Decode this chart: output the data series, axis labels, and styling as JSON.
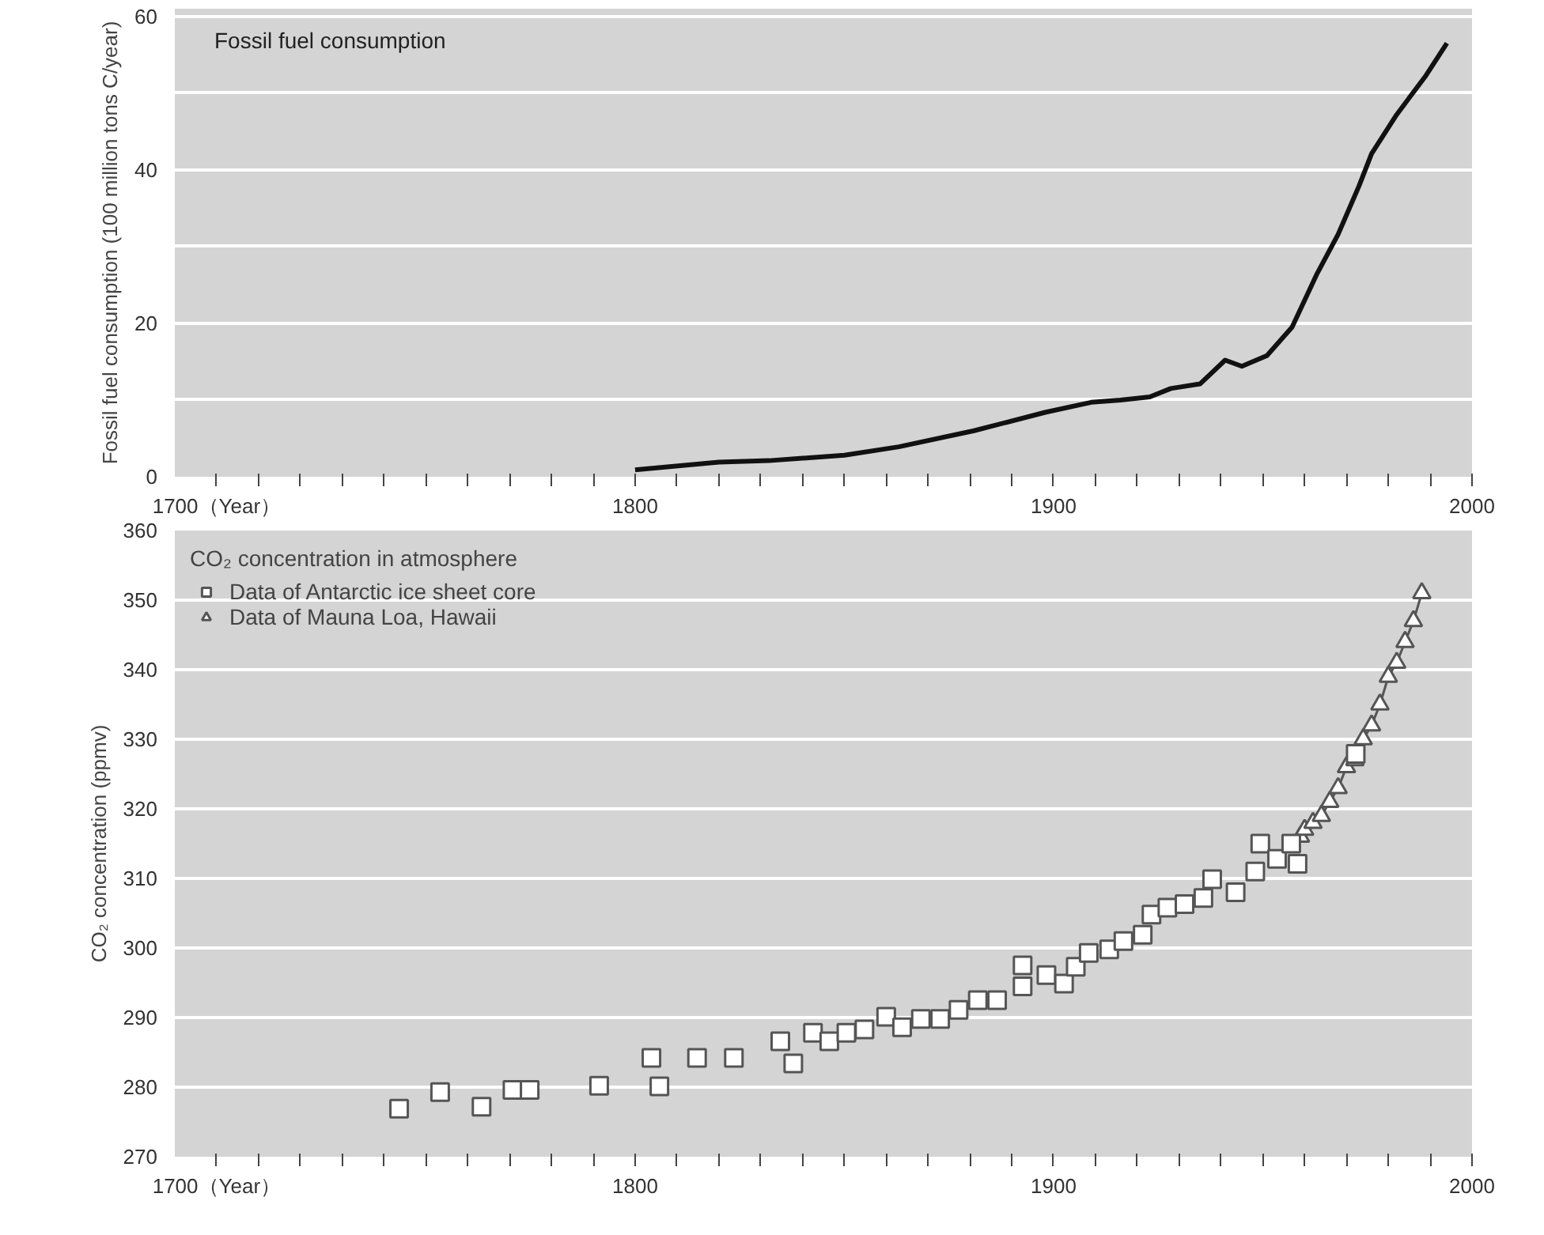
{
  "chart_data": [
    {
      "type": "line",
      "title": "Fossil fuel consumption",
      "ylabel": "Fossil fuel consumption (100 million tons C/year)",
      "x": [
        1800,
        1820,
        1832,
        1850,
        1863,
        1881,
        1898,
        1909,
        1916,
        1923,
        1928,
        1935,
        1941,
        1945,
        1951,
        1957,
        1963,
        1968,
        1973,
        1976,
        1982,
        1989,
        1994
      ],
      "series": [
        {
          "color": "#111111",
          "values": [
            0.9,
            1.9,
            2.1,
            2.8,
            3.9,
            6.0,
            8.4,
            9.7,
            10.0,
            10.4,
            11.5,
            12.1,
            15.2,
            14.4,
            15.8,
            19.5,
            26.5,
            31.6,
            37.9,
            42.1,
            47.2,
            52.3,
            56.5
          ]
        }
      ],
      "xlim": [
        1690,
        2000
      ],
      "ylim": [
        0,
        61
      ],
      "xticks": [
        {
          "value": 1700,
          "label": "1700（Year）"
        },
        {
          "value": 1710,
          "label": null
        },
        {
          "value": 1720,
          "label": null
        },
        {
          "value": 1730,
          "label": null
        },
        {
          "value": 1740,
          "label": null
        },
        {
          "value": 1750,
          "label": null
        },
        {
          "value": 1760,
          "label": null
        },
        {
          "value": 1770,
          "label": null
        },
        {
          "value": 1780,
          "label": null
        },
        {
          "value": 1790,
          "label": null
        },
        1800,
        {
          "value": 1810,
          "label": null
        },
        {
          "value": 1820,
          "label": null
        },
        {
          "value": 1830,
          "label": null
        },
        {
          "value": 1840,
          "label": null
        },
        {
          "value": 1850,
          "label": null
        },
        {
          "value": 1860,
          "label": null
        },
        {
          "value": 1870,
          "label": null
        },
        {
          "value": 1880,
          "label": null
        },
        {
          "value": 1890,
          "label": null
        },
        1900,
        {
          "value": 1910,
          "label": null
        },
        {
          "value": 1920,
          "label": null
        },
        {
          "value": 1930,
          "label": null
        },
        {
          "value": 1940,
          "label": null
        },
        {
          "value": 1950,
          "label": null
        },
        {
          "value": 1960,
          "label": null
        },
        {
          "value": 1970,
          "label": null
        },
        {
          "value": 1980,
          "label": null
        },
        {
          "value": 1990,
          "label": null
        },
        2000
      ],
      "yticks": [
        0,
        {
          "value": 10,
          "label": null
        },
        20,
        {
          "value": 30,
          "label": null
        },
        40,
        {
          "value": 50,
          "label": null
        },
        60
      ],
      "grid": "y",
      "line_style": "solid",
      "marker": "none"
    },
    {
      "type": "scatter",
      "legend_title": "CO₂ concentration in atmosphere",
      "ylabel": "CO₂ concentration (ppmv)",
      "legend": "top left",
      "series": [
        {
          "name": "Data of Antarctic ice sheet core",
          "color": "#555555",
          "marker": "square",
          "x": [
            1743.6,
            1753.4,
            1763.3,
            1770.7,
            1774.8,
            1791.4,
            1803.9,
            1805.8,
            1814.8,
            1823.6,
            1834.7,
            1837.8,
            1842.5,
            1846.4,
            1850.5,
            1854.8,
            1860.0,
            1863.8,
            1868.3,
            1872.9,
            1877.3,
            1881.9,
            1886.5,
            1892.6,
            1892.6,
            1898.3,
            1902.5,
            1905.3,
            1908.4,
            1913.3,
            1916.7,
            1921.3,
            1923.4,
            1927.2,
            1931.3,
            1935.8,
            1937.9,
            1943.5,
            1948.2,
            1949.4,
            1953.4,
            1956.8,
            1958.3,
            1972.2
          ],
          "values": [
            276.9,
            279.3,
            277.2,
            279.6,
            279.6,
            280.2,
            284.2,
            280.1,
            284.2,
            284.2,
            286.6,
            283.4,
            287.8,
            286.6,
            287.8,
            288.3,
            290.1,
            288.6,
            289.8,
            289.8,
            291.1,
            292.5,
            292.5,
            297.5,
            294.5,
            296.1,
            294.9,
            297.3,
            299.3,
            299.8,
            301.0,
            301.9,
            304.8,
            305.8,
            306.3,
            307.2,
            309.9,
            308.0,
            311.0,
            315.0,
            312.8,
            315.0,
            312.1,
            327.9
          ]
        },
        {
          "name": "Data of Mauna Loa, Hawaii",
          "type": "line",
          "color": "#555555",
          "marker": "triangle",
          "x": [
            1959,
            1960,
            1962,
            1964,
            1966,
            1968,
            1970,
            1972,
            1974,
            1976,
            1978,
            1980,
            1982,
            1984,
            1986,
            1988
          ],
          "values": [
            316,
            317,
            318,
            319,
            321,
            323,
            326,
            327,
            330,
            332,
            335,
            339,
            341,
            344,
            347,
            351
          ]
        }
      ],
      "xlim": [
        1690,
        2000
      ],
      "ylim": [
        270,
        360
      ],
      "xticks": [
        {
          "value": 1700,
          "label": "1700（Year）"
        },
        {
          "value": 1710,
          "label": null
        },
        {
          "value": 1720,
          "label": null
        },
        {
          "value": 1730,
          "label": null
        },
        {
          "value": 1740,
          "label": null
        },
        {
          "value": 1750,
          "label": null
        },
        {
          "value": 1760,
          "label": null
        },
        {
          "value": 1770,
          "label": null
        },
        {
          "value": 1780,
          "label": null
        },
        {
          "value": 1790,
          "label": null
        },
        1800,
        {
          "value": 1810,
          "label": null
        },
        {
          "value": 1820,
          "label": null
        },
        {
          "value": 1830,
          "label": null
        },
        {
          "value": 1840,
          "label": null
        },
        {
          "value": 1850,
          "label": null
        },
        {
          "value": 1860,
          "label": null
        },
        {
          "value": 1870,
          "label": null
        },
        {
          "value": 1880,
          "label": null
        },
        {
          "value": 1890,
          "label": null
        },
        1900,
        {
          "value": 1910,
          "label": null
        },
        {
          "value": 1920,
          "label": null
        },
        {
          "value": 1930,
          "label": null
        },
        {
          "value": 1940,
          "label": null
        },
        {
          "value": 1950,
          "label": null
        },
        {
          "value": 1960,
          "label": null
        },
        {
          "value": 1970,
          "label": null
        },
        {
          "value": 1980,
          "label": null
        },
        {
          "value": 1990,
          "label": null
        },
        2000
      ],
      "yticks": [
        270,
        280,
        290,
        300,
        310,
        320,
        330,
        340,
        350,
        360
      ],
      "grid": "y",
      "line_style": "solid"
    }
  ]
}
